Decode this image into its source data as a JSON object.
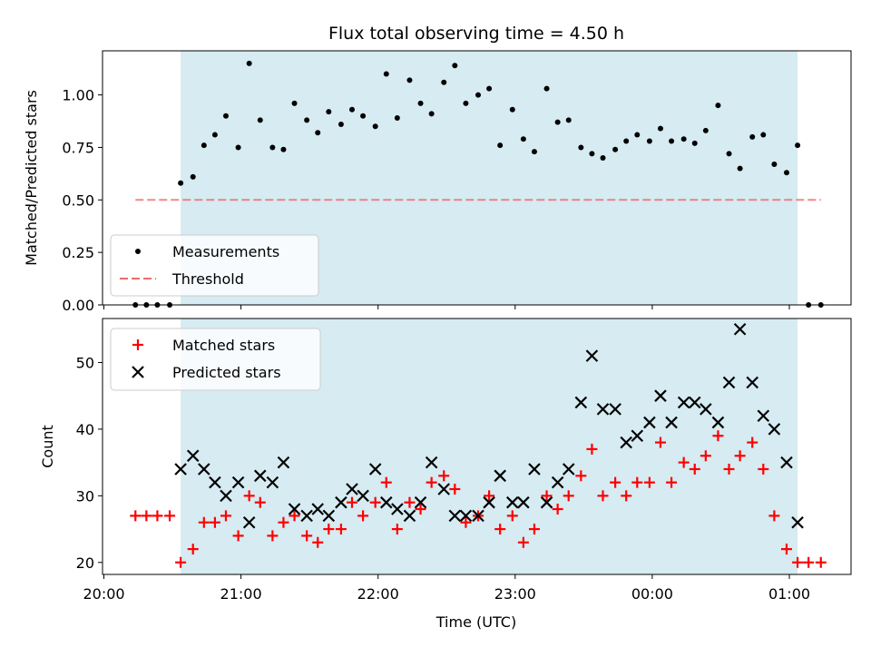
{
  "colors": {
    "span": "#add8e6",
    "threshold": "#ee6b6b",
    "matched": "#ff0000",
    "predicted": "#000000",
    "measurement": "#000000"
  },
  "chart_data": [
    {
      "type": "scatter",
      "title": "Flux total observing time = 4.50 h",
      "xlabel": "",
      "ylabel": "Matched/Predicted stars",
      "xlim_hours": [
        19.99,
        25.45
      ],
      "ylim": [
        0,
        1.21
      ],
      "yticks": [
        0.0,
        0.25,
        0.5,
        0.75,
        1.0
      ],
      "ytick_labels": [
        "0.00",
        "0.25",
        "0.50",
        "0.75",
        "1.00"
      ],
      "shaded_span_hours": [
        20.56,
        25.06
      ],
      "legend": {
        "position": "lower-left",
        "entries": [
          {
            "label": "Measurements",
            "marker": "dot"
          },
          {
            "label": "Threshold",
            "marker": "dashed-line"
          }
        ]
      },
      "threshold": {
        "value": 0.5,
        "x_range_hours": [
          20.23,
          25.23
        ]
      },
      "measurements": {
        "x_hours": [
          20.23,
          20.31,
          20.39,
          20.48,
          20.56,
          20.65,
          20.73,
          20.81,
          20.89,
          20.98,
          21.06,
          21.14,
          21.23,
          21.31,
          21.39,
          21.48,
          21.56,
          21.64,
          21.73,
          21.81,
          21.89,
          21.98,
          22.06,
          22.14,
          22.23,
          22.31,
          22.39,
          22.48,
          22.56,
          22.64,
          22.73,
          22.81,
          22.89,
          22.98,
          23.06,
          23.14,
          23.23,
          23.31,
          23.39,
          23.48,
          23.56,
          23.64,
          23.73,
          23.81,
          23.89,
          23.98,
          24.06,
          24.14,
          24.23,
          24.31,
          24.39,
          24.48,
          24.56,
          24.64,
          24.73,
          24.81,
          24.89,
          24.98,
          25.06,
          25.14,
          25.23
        ],
        "values": [
          0,
          0,
          0,
          0,
          0.58,
          0.61,
          0.76,
          0.81,
          0.9,
          0.75,
          1.15,
          0.88,
          0.75,
          0.74,
          0.96,
          0.88,
          0.82,
          0.92,
          0.86,
          0.93,
          0.9,
          0.85,
          1.1,
          0.89,
          1.07,
          0.96,
          0.91,
          1.06,
          1.14,
          0.96,
          1.0,
          1.03,
          0.76,
          0.93,
          0.79,
          0.73,
          1.03,
          0.87,
          0.88,
          0.75,
          0.72,
          0.7,
          0.74,
          0.78,
          0.81,
          0.78,
          0.84,
          0.78,
          0.79,
          0.77,
          0.83,
          0.95,
          0.72,
          0.65,
          0.8,
          0.81,
          0.67,
          0.63,
          0.76,
          0,
          0
        ]
      }
    },
    {
      "type": "scatter",
      "title": "",
      "xlabel": "Time (UTC)",
      "ylabel": "Count",
      "xlim_hours": [
        19.99,
        25.45
      ],
      "ylim": [
        18.2,
        56.6
      ],
      "yticks": [
        20,
        30,
        40,
        50
      ],
      "ytick_labels": [
        "20",
        "30",
        "40",
        "50"
      ],
      "xticks_hours": [
        20,
        21,
        22,
        23,
        24,
        25
      ],
      "xtick_labels": [
        "20:00",
        "21:00",
        "22:00",
        "23:00",
        "00:00",
        "01:00"
      ],
      "shaded_span_hours": [
        20.56,
        25.06
      ],
      "legend": {
        "position": "upper-left",
        "entries": [
          {
            "label": "Matched stars",
            "marker": "plus"
          },
          {
            "label": "Predicted stars",
            "marker": "x"
          }
        ]
      },
      "series": [
        {
          "name": "Matched stars",
          "x_hours": [
            20.23,
            20.31,
            20.39,
            20.48,
            20.56,
            20.65,
            20.73,
            20.81,
            20.89,
            20.98,
            21.06,
            21.14,
            21.23,
            21.31,
            21.39,
            21.48,
            21.56,
            21.64,
            21.73,
            21.81,
            21.89,
            21.98,
            22.06,
            22.14,
            22.23,
            22.31,
            22.39,
            22.48,
            22.56,
            22.64,
            22.73,
            22.81,
            22.89,
            22.98,
            23.06,
            23.14,
            23.23,
            23.31,
            23.39,
            23.48,
            23.56,
            23.64,
            23.73,
            23.81,
            23.89,
            23.98,
            24.06,
            24.14,
            24.23,
            24.31,
            24.39,
            24.48,
            24.56,
            24.64,
            24.73,
            24.81,
            24.89,
            24.98,
            25.06,
            25.14,
            25.23
          ],
          "values": [
            27,
            27,
            27,
            27,
            20,
            22,
            26,
            26,
            27,
            24,
            30,
            29,
            24,
            26,
            27,
            24,
            23,
            25,
            25,
            29,
            27,
            29,
            32,
            25,
            29,
            28,
            32,
            33,
            31,
            26,
            27,
            30,
            25,
            27,
            23,
            25,
            30,
            28,
            30,
            33,
            37,
            30,
            32,
            30,
            32,
            32,
            38,
            32,
            35,
            34,
            36,
            39,
            34,
            36,
            38,
            34,
            27,
            22,
            20,
            20,
            20
          ]
        },
        {
          "name": "Predicted stars",
          "x_hours": [
            20.56,
            20.65,
            20.73,
            20.81,
            20.89,
            20.98,
            21.06,
            21.14,
            21.23,
            21.31,
            21.39,
            21.48,
            21.56,
            21.64,
            21.73,
            21.81,
            21.89,
            21.98,
            22.06,
            22.14,
            22.23,
            22.31,
            22.39,
            22.48,
            22.56,
            22.64,
            22.73,
            22.81,
            22.89,
            22.98,
            23.06,
            23.14,
            23.23,
            23.31,
            23.39,
            23.48,
            23.56,
            23.64,
            23.73,
            23.81,
            23.89,
            23.98,
            24.06,
            24.14,
            24.23,
            24.31,
            24.39,
            24.48,
            24.56,
            24.64,
            24.73,
            24.81,
            24.89,
            24.98,
            25.06
          ],
          "values": [
            34,
            36,
            34,
            32,
            30,
            32,
            26,
            33,
            32,
            35,
            28,
            27,
            28,
            27,
            29,
            31,
            30,
            34,
            29,
            28,
            27,
            29,
            35,
            31,
            27,
            27,
            27,
            29,
            33,
            29,
            29,
            34,
            29,
            32,
            34,
            44,
            51,
            43,
            43,
            38,
            39,
            41,
            45,
            41,
            44,
            44,
            43,
            41,
            47,
            55,
            47,
            42,
            40,
            35,
            26
          ]
        }
      ]
    }
  ]
}
